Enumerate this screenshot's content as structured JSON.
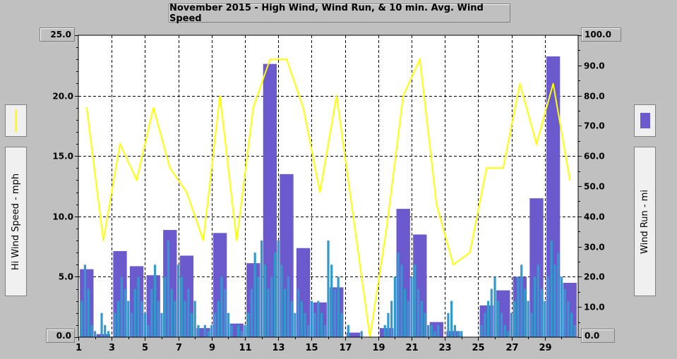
{
  "chart_data": {
    "type": "bar",
    "title": "November 2015 - High Wind, Wind Run, & 10 min. Avg. Wind Speed",
    "left_axis": {
      "label": "Hi Wind Speed - mph",
      "ylim": [
        0,
        25
      ],
      "ticks": [
        "0.0",
        "5.0",
        "10.0",
        "15.0",
        "20.0",
        "25.0"
      ]
    },
    "right_axis": {
      "label": "Wind Run - mi",
      "ylim": [
        0,
        100
      ],
      "ticks": [
        "0.0",
        "10.0",
        "20.0",
        "30.0",
        "40.0",
        "50.0",
        "60.0",
        "70.0",
        "80.0",
        "90.0",
        "100.0"
      ]
    },
    "xlim": [
      1,
      31
    ],
    "x_tick_labels": [
      "1",
      "3",
      "5",
      "7",
      "9",
      "11",
      "13",
      "15",
      "17",
      "19",
      "21",
      "23",
      "25",
      "27",
      "29"
    ],
    "grid": true,
    "series": [
      {
        "name": "Hi Wind Speed - mph",
        "type": "line",
        "color": "#ffff00",
        "axis": "left",
        "x": [
          1.5,
          2.5,
          3.5,
          4.5,
          5.5,
          6.5,
          7.5,
          8.5,
          9.5,
          10.5,
          11.5,
          12.5,
          13.5,
          14.5,
          15.5,
          16.5,
          17.5,
          18.5,
          19.5,
          20.5,
          21.5,
          22.5,
          23.5,
          24.5,
          25.5,
          26.5,
          27.5,
          28.5,
          29.5,
          30.5
        ],
        "values": [
          19,
          8,
          16,
          13,
          19,
          14,
          12,
          8,
          20,
          8,
          19,
          23,
          23,
          19,
          12,
          20,
          10,
          0,
          9,
          20,
          23,
          11,
          6,
          7,
          14,
          14,
          21,
          16,
          21,
          13
        ]
      },
      {
        "name": "Wind Run - mi",
        "type": "bar",
        "color": "#6a5acd",
        "axis": "right",
        "x": [
          1.5,
          2.5,
          3.5,
          4.5,
          5.5,
          6.5,
          7.5,
          8.5,
          9.5,
          10.5,
          11.5,
          12.5,
          13.5,
          14.5,
          15.5,
          16.5,
          17.5,
          18.5,
          19.5,
          20.5,
          21.5,
          22.5,
          23.5,
          24.5,
          25.5,
          26.5,
          27.5,
          28.5,
          29.5,
          30.5
        ],
        "values": [
          22.5,
          1,
          28.5,
          23.5,
          20.5,
          35.5,
          27,
          3,
          34.5,
          4.5,
          24.5,
          90.5,
          54,
          29.5,
          11.5,
          16.5,
          1.5,
          0,
          3,
          42.5,
          34,
          5,
          2,
          0,
          10.5,
          15.5,
          20,
          46,
          93,
          18
        ]
      },
      {
        "name": "10 min. Avg. Wind Speed",
        "type": "bar",
        "color": "#3399cc",
        "axis": "left",
        "x": [
          1.2,
          1.4,
          1.6,
          1.8,
          2.0,
          2.4,
          2.6,
          2.8,
          3.2,
          3.4,
          3.6,
          3.8,
          4.0,
          4.2,
          4.4,
          4.6,
          4.8,
          5.0,
          5.2,
          5.4,
          5.6,
          5.8,
          6.0,
          6.2,
          6.4,
          6.6,
          6.8,
          7.0,
          7.2,
          7.4,
          7.6,
          7.8,
          8.0,
          8.2,
          8.6,
          8.8,
          9.0,
          9.2,
          9.4,
          9.6,
          9.8,
          10.0,
          10.2,
          10.6,
          10.8,
          11.0,
          11.2,
          11.4,
          11.6,
          11.8,
          12.0,
          12.2,
          12.4,
          12.6,
          12.8,
          13.0,
          13.2,
          13.4,
          13.6,
          13.8,
          14.0,
          14.2,
          14.4,
          14.6,
          14.8,
          15.0,
          15.2,
          15.4,
          15.6,
          15.8,
          16.0,
          16.2,
          16.4,
          16.6,
          16.8,
          17.2,
          18.0,
          19.4,
          19.6,
          19.8,
          20.0,
          20.2,
          20.4,
          20.6,
          20.8,
          21.0,
          21.2,
          21.4,
          21.6,
          21.8,
          22.0,
          22.2,
          22.4,
          22.6,
          23.2,
          23.4,
          23.6,
          23.8,
          24.0,
          25.2,
          25.4,
          25.6,
          25.8,
          26.0,
          26.2,
          26.4,
          26.6,
          26.8,
          27.0,
          27.2,
          27.4,
          27.6,
          27.8,
          28.0,
          28.2,
          28.4,
          28.6,
          28.8,
          29.0,
          29.2,
          29.4,
          29.6,
          29.8,
          30.0,
          30.2,
          30.4,
          30.6,
          30.8
        ],
        "values": [
          3,
          6,
          4,
          1,
          0.5,
          2,
          1,
          0.5,
          2,
          3,
          5,
          4,
          3,
          2,
          4,
          5,
          3,
          2,
          1,
          4,
          6,
          3,
          2,
          5,
          8,
          4,
          3,
          6,
          5,
          3,
          4,
          2,
          3,
          1,
          1,
          0.5,
          1,
          2,
          3,
          5,
          4,
          2,
          1,
          1,
          0.5,
          1,
          2,
          4,
          7,
          5,
          8,
          6,
          4,
          5,
          7,
          8,
          6,
          4,
          5,
          3,
          2,
          4,
          3,
          2,
          1,
          3,
          2,
          3,
          2,
          1,
          8,
          6,
          4,
          5,
          2,
          1,
          0.5,
          1,
          2,
          3,
          5,
          7,
          6,
          4,
          3,
          5,
          6,
          4,
          3,
          2,
          1,
          1,
          0.5,
          1,
          2,
          3,
          1,
          0.5,
          0.5,
          1,
          2,
          3,
          4,
          5,
          3,
          2,
          1,
          0.5,
          2,
          3,
          5,
          6,
          4,
          3,
          2,
          5,
          6,
          4,
          3,
          5,
          8,
          6,
          7,
          5,
          4,
          3,
          2,
          1
        ]
      }
    ]
  },
  "legend": {
    "left_color": "#ffff00",
    "right_color": "#6a5acd"
  },
  "colors": {
    "background": "#c0c0c0",
    "plot_background": "#ffffff",
    "grid": "#000000"
  }
}
